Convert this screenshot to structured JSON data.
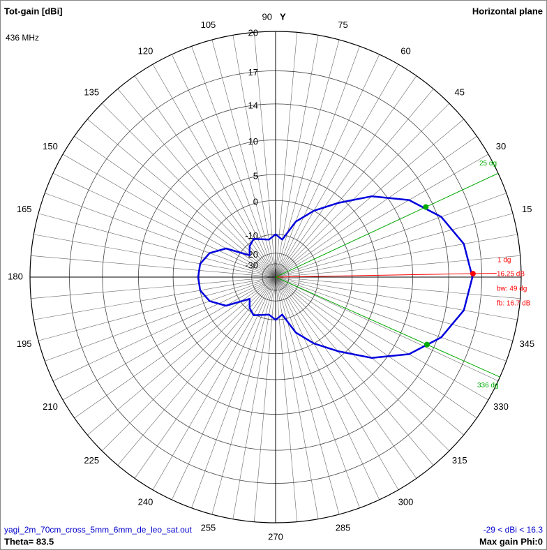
{
  "chart_data": {
    "type": "polar",
    "title": "Tot-gain [dBi]",
    "subtitle": "436 MHz",
    "plane_label": "Horizontal plane",
    "axis_label": "Y",
    "file_label": "yagi_2m_70cm_cross_5mm_6mm_de_leo_sat.out",
    "range_label": "-29 < dBi < 16.3",
    "theta_label": "Theta= 83.5",
    "max_gain_label": "Max gain Phi:0",
    "scale": "arrl-log",
    "rmax": 20,
    "rticks": [
      20,
      17,
      14,
      10,
      5,
      0,
      -10,
      -20,
      -30
    ],
    "angle_ticks": [
      15,
      30,
      45,
      60,
      75,
      90,
      105,
      120,
      135,
      150,
      165,
      180,
      195,
      210,
      225,
      240,
      255,
      270,
      285,
      300,
      315,
      330,
      345
    ],
    "series": [
      {
        "color": "#0000dd",
        "theta": [
          0,
          10,
          20,
          30,
          40,
          50,
          60,
          70,
          80,
          90,
          100,
          110,
          120,
          130,
          140,
          150,
          160,
          170,
          180,
          190,
          200,
          210,
          220,
          230,
          240,
          250,
          260,
          270,
          280,
          290,
          300,
          310,
          320,
          330,
          340,
          350
        ],
        "values": [
          16.2,
          15.7,
          14.3,
          12,
          8.5,
          4,
          0,
          -4.5,
          -12,
          -10,
          -12,
          -11,
          -9.5,
          -11,
          -14,
          -5,
          -1.5,
          0,
          0.2,
          0,
          -1.5,
          -5,
          -14,
          -11,
          -9.5,
          -11,
          -12,
          -10,
          -12,
          -4.5,
          0,
          4,
          8.5,
          12,
          14.3,
          15.7
        ]
      }
    ],
    "markers": [
      {
        "theta": 1,
        "value": 16.25,
        "color": "#ff0000",
        "label": "1 dg",
        "value_label": "16.25 dB"
      },
      {
        "theta": 25,
        "value": 13.25,
        "color": "#00aa00",
        "label": "25 dg"
      },
      {
        "theta": 336,
        "value": 13.25,
        "color": "#00aa00",
        "label": "336 dg"
      }
    ],
    "annotations": [
      {
        "text": "bw: 49 dg",
        "color": "#ff0000"
      },
      {
        "text": "fb: 16.7 dB",
        "color": "#ff0000"
      }
    ]
  }
}
